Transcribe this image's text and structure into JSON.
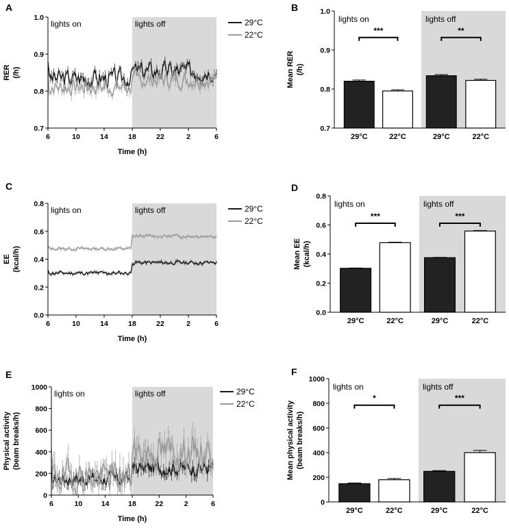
{
  "colors": {
    "black_series": "#1a1a1a",
    "gray_series": "#9a9a9a",
    "shade": "#d9d9d9",
    "bar_black": "#222222",
    "bar_white": "#ffffff"
  },
  "chart_data": [
    {
      "id": "A",
      "letter": "A",
      "type": "line",
      "title": "",
      "ylabel": [
        "RER",
        "(/h)"
      ],
      "xlabel": "Time (h)",
      "ylim": [
        0.7,
        1.0
      ],
      "yticks": [
        "0.7",
        "0.8",
        "0.9",
        "1.0"
      ],
      "xticks": [
        "6",
        "10",
        "14",
        "18",
        "22",
        "2",
        "6"
      ],
      "shade": {
        "from_hour": 18,
        "to_hour": 30,
        "label_left": "lights on",
        "label_right": "lights off"
      },
      "legend": [
        "29°C",
        "22°C"
      ],
      "series": [
        {
          "name": "29°C",
          "color": "black",
          "base_on": 0.835,
          "base_off": 0.855,
          "noise": 0.022,
          "err": 0.012,
          "seed": 3
        },
        {
          "name": "22°C",
          "color": "gray",
          "base_on": 0.81,
          "base_off": 0.83,
          "noise": 0.02,
          "err": 0.012,
          "seed": 7
        }
      ]
    },
    {
      "id": "B",
      "letter": "B",
      "type": "bar",
      "ylabel": [
        "Mean RER",
        "(/h)"
      ],
      "ylim": [
        0.7,
        1.0
      ],
      "yticks": [
        "0.7",
        "0.8",
        "0.9",
        "1.0"
      ],
      "categories": [
        "29°C",
        "22°C",
        "29°C",
        "22°C"
      ],
      "values": [
        0.82,
        0.795,
        0.834,
        0.822
      ],
      "errors": [
        0.003,
        0.003,
        0.003,
        0.003
      ],
      "fills": [
        "black",
        "white",
        "black",
        "white"
      ],
      "shade_label_left": "lights on",
      "shade_label_right": "lights off",
      "significance": [
        {
          "pair": [
            0,
            1
          ],
          "label": "***",
          "level": 0.932
        },
        {
          "pair": [
            2,
            3
          ],
          "label": "**",
          "level": 0.932
        }
      ]
    },
    {
      "id": "C",
      "letter": "C",
      "type": "line",
      "ylabel": [
        "EE",
        "(kcal/h)"
      ],
      "xlabel": "Time (h)",
      "ylim": [
        0,
        0.8
      ],
      "yticks": [
        "0.0",
        "0.2",
        "0.4",
        "0.6",
        "0.8"
      ],
      "xticks": [
        "6",
        "10",
        "14",
        "18",
        "22",
        "2",
        "6"
      ],
      "shade": {
        "from_hour": 18,
        "to_hour": 30,
        "label_left": "lights on",
        "label_right": "lights off"
      },
      "legend": [
        "29°C",
        "22°C"
      ],
      "series": [
        {
          "name": "29°C",
          "color": "black",
          "base_on": 0.3,
          "base_off": 0.375,
          "noise": 0.012,
          "err": 0.012,
          "seed": 11
        },
        {
          "name": "22°C",
          "color": "gray",
          "base_on": 0.475,
          "base_off": 0.565,
          "noise": 0.01,
          "err": 0.012,
          "seed": 13
        }
      ]
    },
    {
      "id": "D",
      "letter": "D",
      "type": "bar",
      "ylabel": [
        "Mean EE",
        "(kcal/h)"
      ],
      "ylim": [
        0,
        0.8
      ],
      "yticks": [
        "0.0",
        "0.2",
        "0.4",
        "0.6",
        "0.8"
      ],
      "categories": [
        "29°C",
        "22°C",
        "29°C",
        "22°C"
      ],
      "values": [
        0.302,
        0.478,
        0.375,
        0.558
      ],
      "errors": [
        0.002,
        0.003,
        0.002,
        0.003
      ],
      "fills": [
        "black",
        "white",
        "black",
        "white"
      ],
      "shade_label_left": "lights on",
      "shade_label_right": "lights off",
      "significance": [
        {
          "pair": [
            0,
            1
          ],
          "label": "***",
          "level": 0.612
        },
        {
          "pair": [
            2,
            3
          ],
          "label": "***",
          "level": 0.612
        }
      ]
    },
    {
      "id": "E",
      "letter": "E",
      "type": "line",
      "ylabel": [
        "Physical activity",
        "(beam breaks/h)"
      ],
      "xlabel": "Time (h)",
      "ylim": [
        0,
        1000
      ],
      "yticks": [
        "0",
        "200",
        "400",
        "600",
        "800",
        "1000"
      ],
      "xticks": [
        "6",
        "10",
        "14",
        "18",
        "22",
        "2",
        "6"
      ],
      "shade": {
        "from_hour": 18,
        "to_hour": 30,
        "label_left": "lights on",
        "label_right": "lights off"
      },
      "legend": [
        "29°C",
        "22°C"
      ],
      "series": [
        {
          "name": "29°C",
          "color": "black",
          "base_on": 150,
          "base_off": 250,
          "noise": 60,
          "err": 60,
          "seed": 17
        },
        {
          "name": "22°C",
          "color": "gray",
          "base_on": 170,
          "base_off": 400,
          "noise": 130,
          "err": 110,
          "seed": 19
        }
      ]
    },
    {
      "id": "F",
      "letter": "F",
      "type": "bar",
      "ylabel": [
        "Mean physical activity",
        "(beam breaks/h)"
      ],
      "ylim": [
        0,
        1000
      ],
      "yticks": [
        "0",
        "200",
        "400",
        "600",
        "800",
        "1000"
      ],
      "categories": [
        "29°C",
        "22°C",
        "29°C",
        "22°C"
      ],
      "values": [
        148,
        180,
        248,
        400
      ],
      "errors": [
        6,
        10,
        6,
        18
      ],
      "fills": [
        "black",
        "white",
        "black",
        "white"
      ],
      "shade_label_left": "lights on",
      "shade_label_right": "lights off",
      "significance": [
        {
          "pair": [
            0,
            1
          ],
          "label": "*",
          "level": 785
        },
        {
          "pair": [
            2,
            3
          ],
          "label": "***",
          "level": 785
        }
      ]
    }
  ]
}
